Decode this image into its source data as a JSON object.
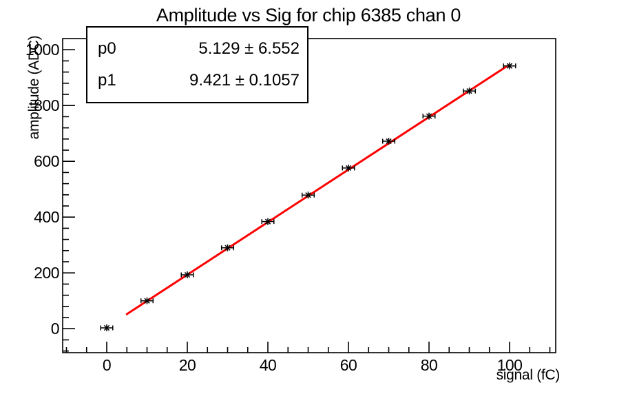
{
  "title": "Amplitude vs Sig for chip 6385 chan 0",
  "stats_box": {
    "rows": [
      {
        "name": "p0",
        "value": "5.129 ± 6.552"
      },
      {
        "name": "p1",
        "value": "9.421 ± 0.1057"
      }
    ]
  },
  "colors": {
    "background": "#ffffff",
    "axis": "#000000",
    "text": "#000000",
    "marker": "#000000",
    "fit_line": "#ff0000"
  },
  "chart_data": {
    "type": "scatter",
    "title": "Amplitude vs Sig for chip 6385 chan 0",
    "xlabel": "signal (fC)",
    "ylabel": "amplitude (ADC)",
    "x": [
      0,
      10,
      20,
      30,
      40,
      50,
      60,
      70,
      80,
      90,
      100
    ],
    "y": [
      3,
      100,
      193,
      290,
      384,
      479,
      576,
      672,
      762,
      852,
      942
    ],
    "x_error": 1.5,
    "marker": "asterisk",
    "marker_color": "#000000",
    "fit": {
      "type": "linear",
      "p0": 5.129,
      "p0_err": 6.552,
      "p1": 9.421,
      "p1_err": 0.1057,
      "x_range": [
        5,
        99.4
      ],
      "color": "#ff0000"
    },
    "xlim": [
      -10.94,
      111.45
    ],
    "ylim": [
      -85.9,
      1040
    ],
    "x_major_ticks": [
      0,
      20,
      40,
      60,
      80,
      100
    ],
    "x_minor_step": 5,
    "y_major_ticks": [
      0,
      200,
      400,
      600,
      800,
      1000
    ],
    "y_minor_step": 40,
    "grid": false,
    "legend": null
  }
}
